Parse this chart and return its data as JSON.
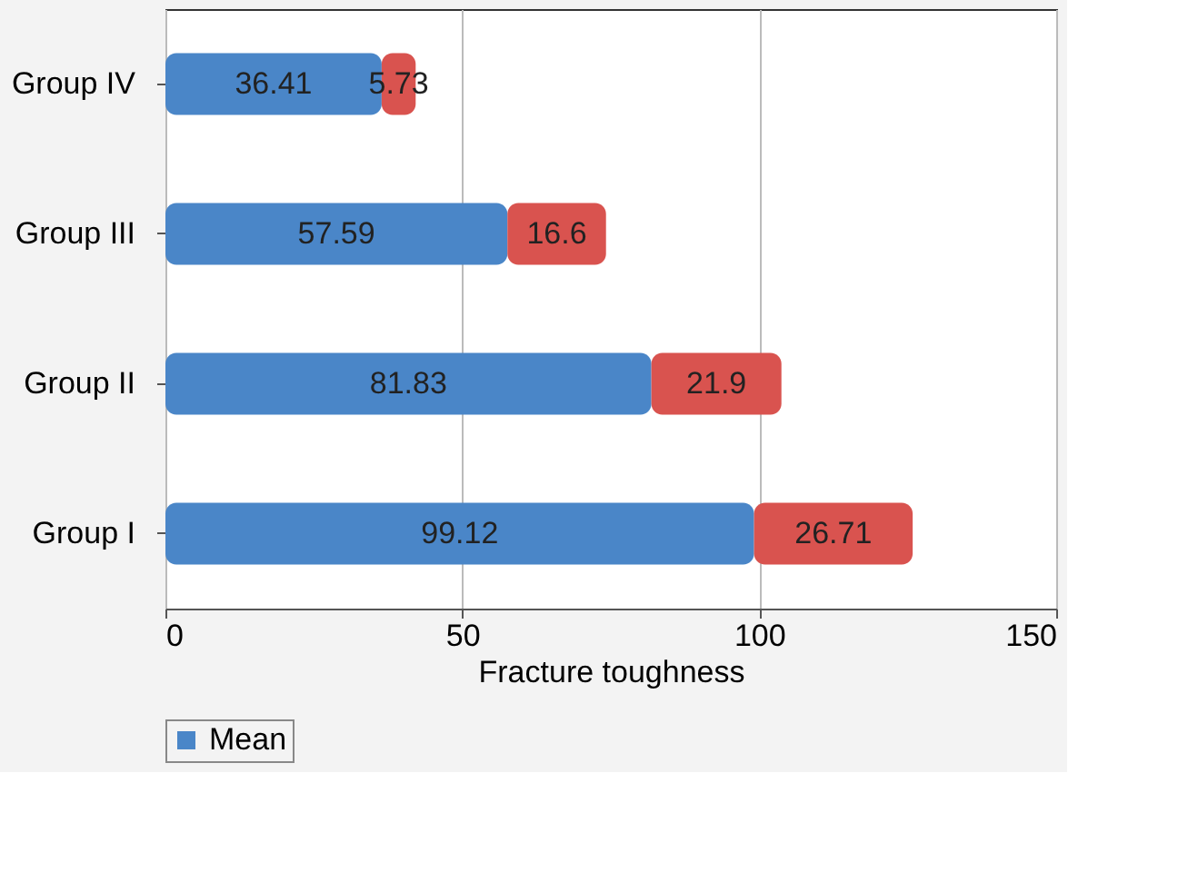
{
  "chart_data": {
    "type": "bar",
    "orientation": "horizontal",
    "stacked": true,
    "categories": [
      "Group IV",
      "Group III",
      "Group II",
      "Group I"
    ],
    "series": [
      {
        "name": "Mean",
        "color": "#4a86c8",
        "values": [
          36.41,
          57.59,
          81.83,
          99.12
        ]
      },
      {
        "color": "#d9534f",
        "values": [
          5.73,
          16.6,
          21.9,
          26.71
        ]
      }
    ],
    "xlabel": "Fracture toughness",
    "xlim": [
      0,
      150
    ],
    "xticks": [
      0,
      50,
      100,
      150
    ],
    "grid": "x",
    "legend": "bottom",
    "data_labels": true
  }
}
